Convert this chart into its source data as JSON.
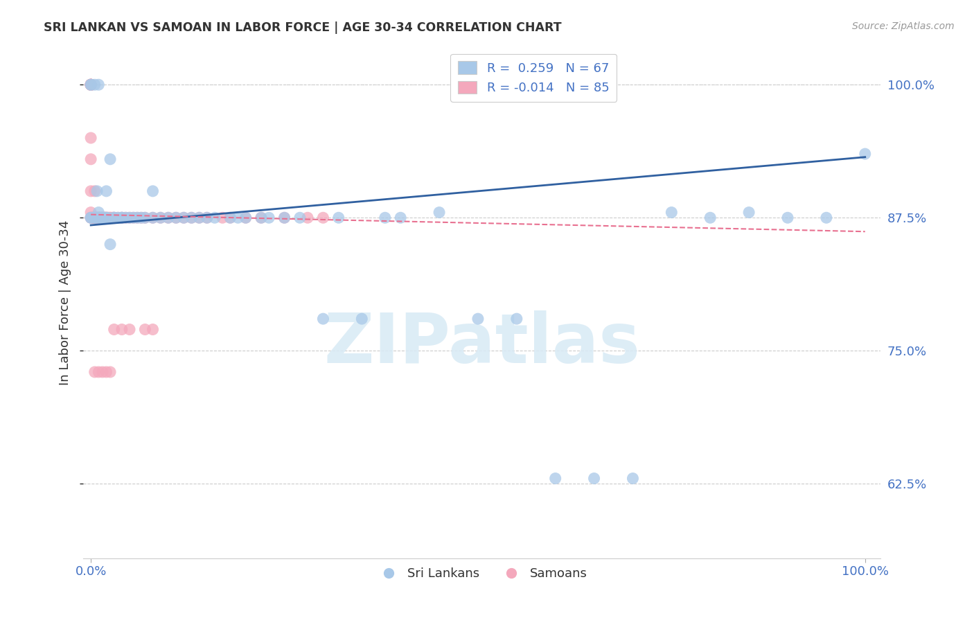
{
  "title": "SRI LANKAN VS SAMOAN IN LABOR FORCE | AGE 30-34 CORRELATION CHART",
  "source": "Source: ZipAtlas.com",
  "ylabel": "In Labor Force | Age 30-34",
  "xlim": [
    -0.01,
    1.02
  ],
  "ylim": [
    0.555,
    1.035
  ],
  "yticks": [
    0.625,
    0.75,
    0.875,
    1.0
  ],
  "ytick_labels": [
    "62.5%",
    "75.0%",
    "87.5%",
    "100.0%"
  ],
  "legend_blue_R": "0.259",
  "legend_blue_N": "67",
  "legend_pink_R": "-0.014",
  "legend_pink_N": "85",
  "blue_color": "#a8c8e8",
  "pink_color": "#f4a8bc",
  "blue_line_color": "#3060a0",
  "pink_line_color": "#e87090",
  "watermark": "ZIPatlas",
  "blue_line_x": [
    0.0,
    1.0
  ],
  "blue_line_y": [
    0.868,
    0.932
  ],
  "pink_line_x": [
    0.0,
    1.0
  ],
  "pink_line_y": [
    0.878,
    0.862
  ],
  "sri_lankan_x": [
    0.0,
    0.0,
    0.0,
    0.0,
    0.005,
    0.005,
    0.005,
    0.008,
    0.008,
    0.01,
    0.01,
    0.01,
    0.012,
    0.012,
    0.015,
    0.015,
    0.018,
    0.02,
    0.02,
    0.022,
    0.025,
    0.025,
    0.03,
    0.03,
    0.035,
    0.04,
    0.04,
    0.045,
    0.05,
    0.055,
    0.06,
    0.065,
    0.07,
    0.08,
    0.08,
    0.09,
    0.1,
    0.11,
    0.12,
    0.13,
    0.14,
    0.15,
    0.16,
    0.18,
    0.19,
    0.2,
    0.22,
    0.23,
    0.25,
    0.27,
    0.3,
    0.32,
    0.35,
    0.38,
    0.4,
    0.45,
    0.5,
    0.55,
    0.6,
    0.65,
    0.7,
    0.8,
    0.85,
    0.9,
    0.95,
    1.0,
    0.75
  ],
  "sri_lankan_y": [
    1.0,
    1.0,
    0.875,
    0.875,
    1.0,
    0.875,
    0.875,
    0.875,
    0.9,
    1.0,
    0.875,
    0.88,
    0.875,
    0.875,
    0.875,
    0.875,
    0.875,
    0.9,
    0.875,
    0.875,
    0.93,
    0.85,
    0.875,
    0.875,
    0.875,
    0.875,
    0.875,
    0.875,
    0.875,
    0.875,
    0.875,
    0.875,
    0.875,
    0.9,
    0.875,
    0.875,
    0.875,
    0.875,
    0.875,
    0.875,
    0.875,
    0.875,
    0.875,
    0.875,
    0.875,
    0.875,
    0.875,
    0.875,
    0.875,
    0.875,
    0.78,
    0.875,
    0.78,
    0.875,
    0.875,
    0.88,
    0.78,
    0.78,
    0.63,
    0.63,
    0.63,
    0.875,
    0.88,
    0.875,
    0.875,
    0.935,
    0.88
  ],
  "samoan_x": [
    0.0,
    0.0,
    0.0,
    0.0,
    0.0,
    0.0,
    0.0,
    0.0,
    0.0,
    0.0,
    0.0,
    0.0,
    0.0,
    0.0,
    0.0,
    0.0,
    0.002,
    0.002,
    0.003,
    0.003,
    0.004,
    0.004,
    0.005,
    0.005,
    0.005,
    0.006,
    0.006,
    0.007,
    0.008,
    0.008,
    0.009,
    0.01,
    0.01,
    0.01,
    0.012,
    0.012,
    0.013,
    0.014,
    0.015,
    0.016,
    0.017,
    0.018,
    0.019,
    0.02,
    0.02,
    0.022,
    0.025,
    0.025,
    0.028,
    0.03,
    0.03,
    0.035,
    0.04,
    0.04,
    0.045,
    0.05,
    0.055,
    0.06,
    0.065,
    0.07,
    0.08,
    0.09,
    0.1,
    0.11,
    0.12,
    0.13,
    0.14,
    0.15,
    0.17,
    0.18,
    0.2,
    0.22,
    0.25,
    0.28,
    0.3,
    0.08,
    0.07,
    0.05,
    0.04,
    0.03,
    0.025,
    0.02,
    0.015,
    0.01,
    0.005
  ],
  "samoan_y": [
    1.0,
    1.0,
    1.0,
    1.0,
    1.0,
    1.0,
    1.0,
    1.0,
    1.0,
    1.0,
    0.95,
    0.93,
    0.9,
    0.88,
    0.875,
    0.875,
    0.875,
    0.875,
    0.875,
    0.875,
    0.875,
    0.875,
    0.875,
    0.9,
    0.875,
    0.875,
    0.875,
    0.875,
    0.875,
    0.875,
    0.875,
    0.875,
    0.875,
    0.875,
    0.875,
    0.875,
    0.875,
    0.875,
    0.875,
    0.875,
    0.875,
    0.875,
    0.875,
    0.875,
    0.875,
    0.875,
    0.875,
    0.875,
    0.875,
    0.875,
    0.875,
    0.875,
    0.875,
    0.875,
    0.875,
    0.875,
    0.875,
    0.875,
    0.875,
    0.875,
    0.875,
    0.875,
    0.875,
    0.875,
    0.875,
    0.875,
    0.875,
    0.875,
    0.875,
    0.875,
    0.875,
    0.875,
    0.875,
    0.875,
    0.875,
    0.77,
    0.77,
    0.77,
    0.77,
    0.77,
    0.73,
    0.73,
    0.73,
    0.73,
    0.73
  ]
}
